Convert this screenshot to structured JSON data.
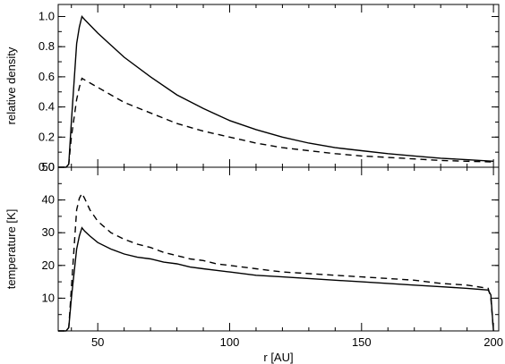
{
  "chart_data": [
    {
      "type": "line",
      "ylabel": "relative density",
      "xlabel": "",
      "xlim": [
        35,
        202
      ],
      "ylim": [
        0,
        1.08
      ],
      "yticks": [
        0.0,
        0.2,
        0.4,
        0.6,
        0.8,
        1.0
      ],
      "ytick_labels": [
        "0.0",
        "0.2",
        "0.4",
        "0.6",
        "0.8",
        "1.0"
      ],
      "xticks": [
        50,
        100,
        150,
        200
      ],
      "xtick_labels": [],
      "series": [
        {
          "style": "solid",
          "x": [
            35,
            38,
            39,
            40,
            42,
            43,
            44,
            45,
            50,
            55,
            60,
            70,
            80,
            90,
            100,
            110,
            120,
            130,
            140,
            150,
            160,
            170,
            180,
            190,
            200
          ],
          "y": [
            0.0,
            0.0,
            0.02,
            0.3,
            0.82,
            0.93,
            1.0,
            0.98,
            0.89,
            0.81,
            0.73,
            0.6,
            0.48,
            0.39,
            0.31,
            0.25,
            0.2,
            0.16,
            0.13,
            0.11,
            0.09,
            0.075,
            0.06,
            0.05,
            0.04
          ]
        },
        {
          "style": "dashed",
          "x": [
            35,
            38,
            39,
            40,
            42,
            43,
            44,
            45,
            50,
            55,
            60,
            70,
            80,
            90,
            100,
            110,
            120,
            130,
            140,
            150,
            160,
            170,
            180,
            190,
            200
          ],
          "y": [
            0.0,
            0.0,
            0.02,
            0.2,
            0.45,
            0.53,
            0.59,
            0.58,
            0.53,
            0.48,
            0.43,
            0.36,
            0.29,
            0.24,
            0.2,
            0.16,
            0.13,
            0.11,
            0.09,
            0.075,
            0.065,
            0.055,
            0.045,
            0.04,
            0.035
          ]
        }
      ]
    },
    {
      "type": "line",
      "ylabel": "temperature  [K]",
      "xlabel": "r   [AU]",
      "xlim": [
        35,
        202
      ],
      "ylim": [
        0,
        50
      ],
      "yticks": [
        10,
        20,
        30,
        40,
        50
      ],
      "ytick_labels": [
        "10",
        "20",
        "30",
        "40",
        "50"
      ],
      "xticks": [
        50,
        100,
        150,
        200
      ],
      "xtick_labels": [
        "50",
        "100",
        "150",
        "200"
      ],
      "series": [
        {
          "style": "solid",
          "x": [
            35,
            38,
            39,
            40,
            42,
            43,
            44,
            45,
            47,
            50,
            55,
            60,
            65,
            70,
            75,
            80,
            85,
            90,
            95,
            100,
            110,
            120,
            130,
            140,
            150,
            160,
            170,
            180,
            190,
            198,
            199,
            200
          ],
          "y": [
            0,
            0,
            1,
            10,
            25,
            29,
            31.5,
            30.5,
            29,
            27,
            25,
            23.5,
            22.5,
            22,
            21,
            20.5,
            19.5,
            19,
            18.5,
            18,
            17,
            16.5,
            16,
            15.5,
            15,
            14.5,
            14,
            13.5,
            13,
            12.5,
            11,
            0
          ]
        },
        {
          "style": "dashed",
          "x": [
            35,
            38,
            39,
            40,
            42,
            43,
            44,
            45,
            47,
            50,
            55,
            60,
            65,
            70,
            75,
            80,
            85,
            90,
            95,
            100,
            110,
            120,
            130,
            140,
            150,
            160,
            170,
            180,
            190,
            198,
            199,
            200
          ],
          "y": [
            0,
            0,
            1,
            13,
            37,
            40.5,
            42,
            40.5,
            37,
            33.5,
            30,
            28,
            26.5,
            25.5,
            24,
            23,
            22,
            21.5,
            20.5,
            20,
            19,
            18,
            17.5,
            17,
            16.5,
            16,
            15.5,
            14.5,
            14,
            13,
            10,
            0
          ]
        }
      ]
    }
  ]
}
